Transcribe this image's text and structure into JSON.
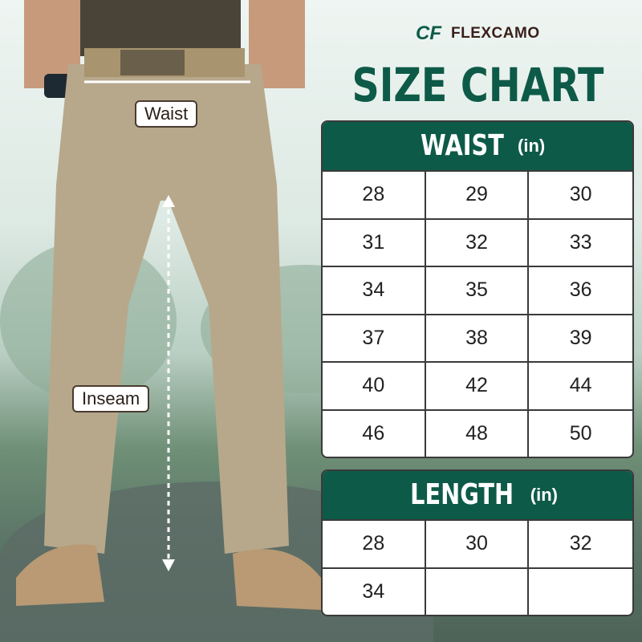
{
  "brand": {
    "name": "FLEXCAMO",
    "logo_mark": "CF"
  },
  "title": "SIZE CHART",
  "photo_labels": {
    "waist": "Waist",
    "inseam": "Inseam"
  },
  "colors": {
    "accent": "#0e5a48",
    "pants": "#b7a88c"
  },
  "waist_table": {
    "heading": "WAIST",
    "unit": "(in)",
    "values": [
      "28",
      "29",
      "30",
      "31",
      "32",
      "33",
      "34",
      "35",
      "36",
      "37",
      "38",
      "39",
      "40",
      "42",
      "44",
      "46",
      "48",
      "50"
    ]
  },
  "length_table": {
    "heading": "LENGTH",
    "unit": "(in)",
    "values": [
      "28",
      "30",
      "32",
      "34",
      "",
      ""
    ]
  }
}
